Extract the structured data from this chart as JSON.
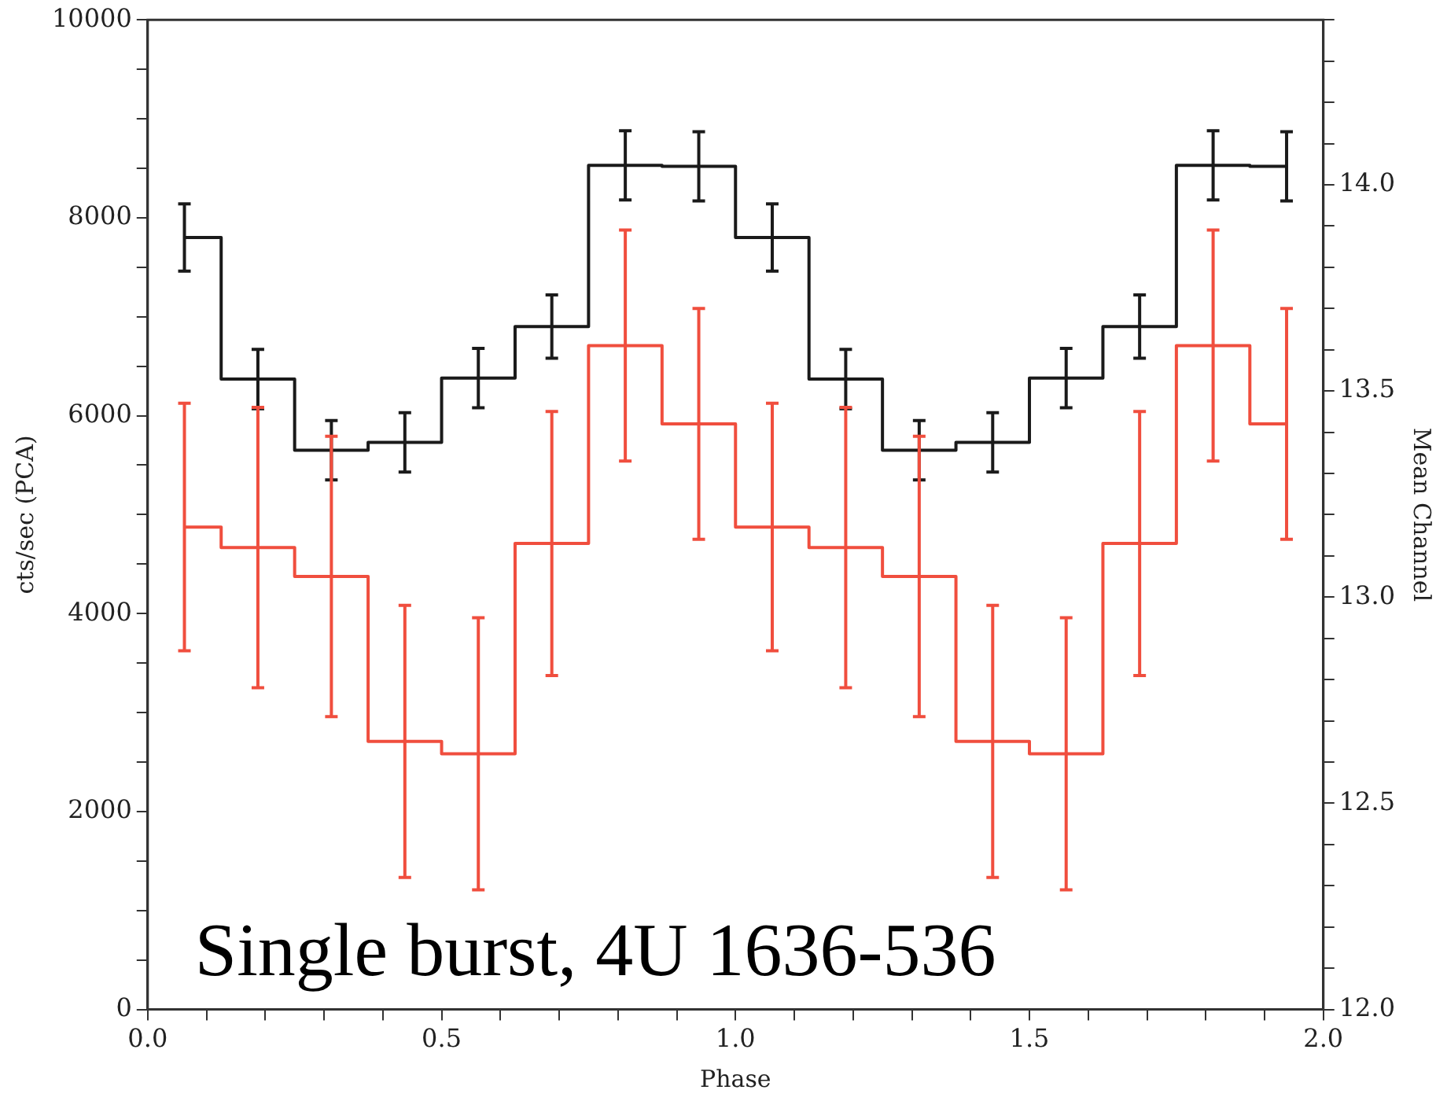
{
  "chart_data": {
    "type": "step",
    "xlabel": "Phase",
    "ylabel": "cts/sec (PCA)",
    "y2label": "Mean Channel",
    "x": [
      0.0625,
      0.1875,
      0.3125,
      0.4375,
      0.5625,
      0.6875,
      0.8125,
      0.9375,
      1.0625,
      1.1875,
      1.3125,
      1.4375,
      1.5625,
      1.6875,
      1.8125,
      1.9375
    ],
    "series": [
      {
        "color": "#1a1a1a",
        "values": [
          7800,
          6370,
          5650,
          5730,
          6380,
          6900,
          8530,
          8520,
          7800,
          6370,
          5650,
          5730,
          6380,
          6900,
          8530,
          8520
        ],
        "errors": [
          340,
          300,
          300,
          300,
          300,
          320,
          350,
          350,
          340,
          300,
          300,
          300,
          300,
          320,
          350,
          350
        ]
      },
      {
        "color": "#f04e3e",
        "axis": "y2",
        "values": [
          13.17,
          13.12,
          13.05,
          12.65,
          12.62,
          13.13,
          13.61,
          13.42,
          13.17,
          13.12,
          13.05,
          12.65,
          12.62,
          13.13,
          13.61,
          13.42
        ],
        "errors": [
          0.3,
          0.34,
          0.34,
          0.33,
          0.33,
          0.32,
          0.28,
          0.28,
          0.3,
          0.34,
          0.34,
          0.33,
          0.33,
          0.32,
          0.28,
          0.28
        ]
      }
    ],
    "xlim": [
      0,
      2
    ],
    "xticks": [
      {
        "value": 0,
        "label": "0.0"
      },
      {
        "value": 0.1,
        "label": null
      },
      {
        "value": 0.2,
        "label": null
      },
      {
        "value": 0.3,
        "label": null
      },
      {
        "value": 0.4,
        "label": null
      },
      {
        "value": 0.5,
        "label": "0.5"
      },
      {
        "value": 0.6,
        "label": null
      },
      {
        "value": 0.7,
        "label": null
      },
      {
        "value": 0.8,
        "label": null
      },
      {
        "value": 0.9,
        "label": null
      },
      {
        "value": 1,
        "label": "1.0"
      },
      {
        "value": 1.1,
        "label": null
      },
      {
        "value": 1.2,
        "label": null
      },
      {
        "value": 1.3,
        "label": null
      },
      {
        "value": 1.4,
        "label": null
      },
      {
        "value": 1.5,
        "label": "1.5"
      },
      {
        "value": 1.6,
        "label": null
      },
      {
        "value": 1.7,
        "label": null
      },
      {
        "value": 1.8,
        "label": null
      },
      {
        "value": 1.9,
        "label": null
      },
      {
        "value": 2,
        "label": "2.0"
      }
    ],
    "ylim": [
      0,
      10000
    ],
    "yticks": [
      0,
      {
        "value": 500,
        "label": null
      },
      2000,
      {
        "value": 1000,
        "label": null
      },
      {
        "value": 1500,
        "label": null
      },
      {
        "value": 2500,
        "label": null
      },
      {
        "value": 3000,
        "label": null
      },
      {
        "value": 3500,
        "label": null
      },
      4000,
      {
        "value": 4500,
        "label": null
      },
      {
        "value": 5000,
        "label": null
      },
      {
        "value": 5500,
        "label": null
      },
      6000,
      {
        "value": 6500,
        "label": null
      },
      {
        "value": 7000,
        "label": null
      },
      {
        "value": 7500,
        "label": null
      },
      8000,
      {
        "value": 8500,
        "label": null
      },
      {
        "value": 9000,
        "label": null
      },
      {
        "value": 9500,
        "label": null
      },
      10000
    ],
    "y2lim": [
      12,
      14.4
    ],
    "y2ticks": [
      {
        "value": 12,
        "label": "12.0"
      },
      {
        "value": 12.1,
        "label": null
      },
      {
        "value": 12.2,
        "label": null
      },
      {
        "value": 12.3,
        "label": null
      },
      {
        "value": 12.4,
        "label": null
      },
      {
        "value": 12.5,
        "label": "12.5"
      },
      {
        "value": 12.6,
        "label": null
      },
      {
        "value": 12.7,
        "label": null
      },
      {
        "value": 12.8,
        "label": null
      },
      {
        "value": 12.9,
        "label": null
      },
      {
        "value": 13,
        "label": "13.0"
      },
      {
        "value": 13.1,
        "label": null
      },
      {
        "value": 13.2,
        "label": null
      },
      {
        "value": 13.3,
        "label": null
      },
      {
        "value": 13.4,
        "label": null
      },
      {
        "value": 13.5,
        "label": "13.5"
      },
      {
        "value": 13.6,
        "label": null
      },
      {
        "value": 13.7,
        "label": null
      },
      {
        "value": 13.8,
        "label": null
      },
      {
        "value": 13.9,
        "label": null
      },
      {
        "value": 14,
        "label": "14.0"
      },
      {
        "value": 14.1,
        "label": null
      },
      {
        "value": 14.2,
        "label": null
      },
      {
        "value": 14.3,
        "label": null
      },
      {
        "value": 14.4,
        "label": null
      }
    ],
    "grid": false,
    "legend": false,
    "marker": "none",
    "line_style": "solid",
    "annotations": [
      "Single burst, 4U 1636-536"
    ]
  }
}
